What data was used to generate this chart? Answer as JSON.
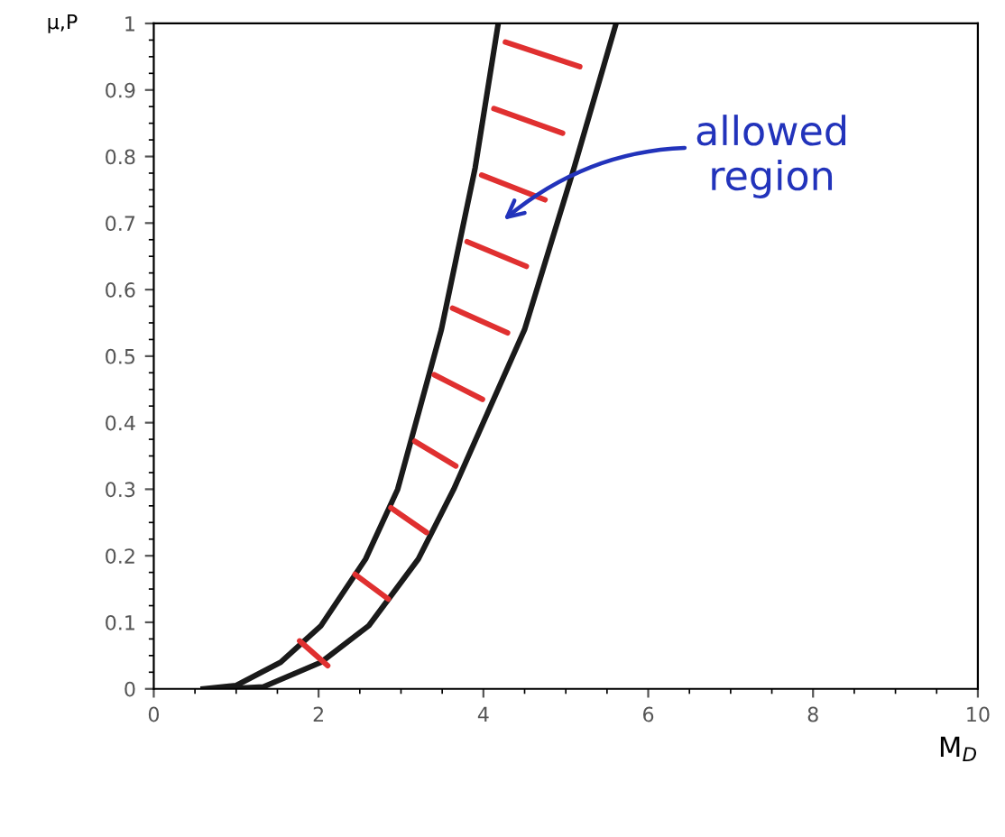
{
  "chart_data": {
    "type": "line",
    "xlabel": "M$_{D}$",
    "ylabel": "μ,P",
    "series": [
      {
        "color": "#1a1a1a",
        "x": [
          0.6,
          1.0,
          1.54,
          2.03,
          2.57,
          2.96,
          3.49,
          3.9,
          4.18
        ],
        "values": [
          0,
          0.005,
          0.04,
          0.095,
          0.195,
          0.3,
          0.54,
          0.783,
          1.0
        ]
      },
      {
        "color": "#1a1a1a",
        "x": [
          0.9,
          1.33,
          2.03,
          2.61,
          3.21,
          3.64,
          4.5,
          5.1,
          5.61
        ],
        "values": [
          0,
          0.003,
          0.04,
          0.095,
          0.195,
          0.3,
          0.54,
          0.783,
          1.0
        ]
      }
    ],
    "annotations": [
      "allowed\nregion"
    ],
    "xlim": [
      0,
      10
    ],
    "ylim": [
      0,
      1
    ],
    "xticks": [
      0,
      2,
      4,
      6,
      8,
      10
    ],
    "yticks": [
      0,
      0.1,
      0.2,
      0.3,
      0.4,
      0.5,
      0.6,
      0.7,
      0.8,
      0.9,
      1
    ],
    "grid": false,
    "legend": false,
    "marker": "none",
    "line_style": "solid"
  }
}
